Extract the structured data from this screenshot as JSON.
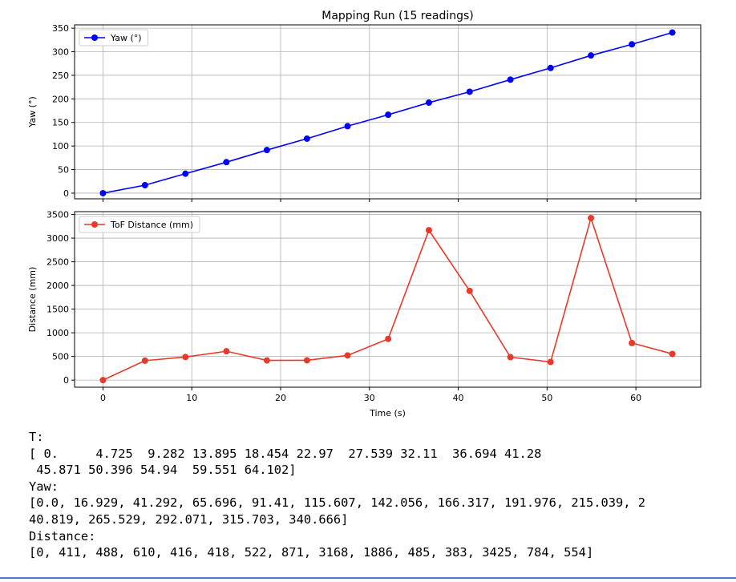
{
  "chart_data": [
    {
      "type": "line",
      "title": "Mapping Run (15 readings)",
      "xlabel": "",
      "ylabel": "Yaw (°)",
      "xlim": [
        -3.2,
        67.3
      ],
      "ylim": [
        -12,
        357
      ],
      "xticks": [
        0,
        10,
        20,
        30,
        40,
        50,
        60
      ],
      "yticks": [
        0,
        50,
        100,
        150,
        200,
        250,
        300,
        350
      ],
      "grid": true,
      "legend": "top-left",
      "x": [
        0,
        4.725,
        9.282,
        13.895,
        18.454,
        22.97,
        27.539,
        32.11,
        36.694,
        41.28,
        45.871,
        50.396,
        54.94,
        59.551,
        64.102
      ],
      "series": [
        {
          "name": "Yaw (°)",
          "color": "#0000ff",
          "values": [
            0.0,
            16.929,
            41.292,
            65.696,
            91.41,
            115.607,
            142.056,
            166.317,
            191.976,
            215.039,
            240.819,
            265.529,
            292.071,
            315.703,
            340.666
          ]
        }
      ]
    },
    {
      "type": "line",
      "title": "",
      "xlabel": "Time (s)",
      "ylabel": "Distance (mm)",
      "xlim": [
        -3.2,
        67.3
      ],
      "ylim": [
        -150,
        3560
      ],
      "xticks": [
        0,
        10,
        20,
        30,
        40,
        50,
        60
      ],
      "yticks": [
        0,
        500,
        1000,
        1500,
        2000,
        2500,
        3000,
        3500
      ],
      "grid": true,
      "legend": "top-left",
      "x": [
        0,
        4.725,
        9.282,
        13.895,
        18.454,
        22.97,
        27.539,
        32.11,
        36.694,
        41.28,
        45.871,
        50.396,
        54.94,
        59.551,
        64.102
      ],
      "series": [
        {
          "name": "ToF Distance (mm)",
          "color": "#e8392a",
          "values": [
            0,
            411,
            488,
            610,
            416,
            418,
            522,
            871,
            3168,
            1886,
            485,
            383,
            3425,
            784,
            554
          ]
        }
      ]
    }
  ],
  "output": {
    "lines": [
      "T:",
      "[ 0.     4.725  9.282 13.895 18.454 22.97  27.539 32.11  36.694 41.28",
      " 45.871 50.396 54.94  59.551 64.102]",
      "Yaw:",
      "[0.0, 16.929, 41.292, 65.696, 91.41, 115.607, 142.056, 166.317, 191.976, 215.039, 2",
      "40.819, 265.529, 292.071, 315.703, 340.666]",
      "Distance:",
      "[0, 411, 488, 610, 416, 418, 522, 871, 3168, 1886, 485, 383, 3425, 784, 554]"
    ]
  }
}
